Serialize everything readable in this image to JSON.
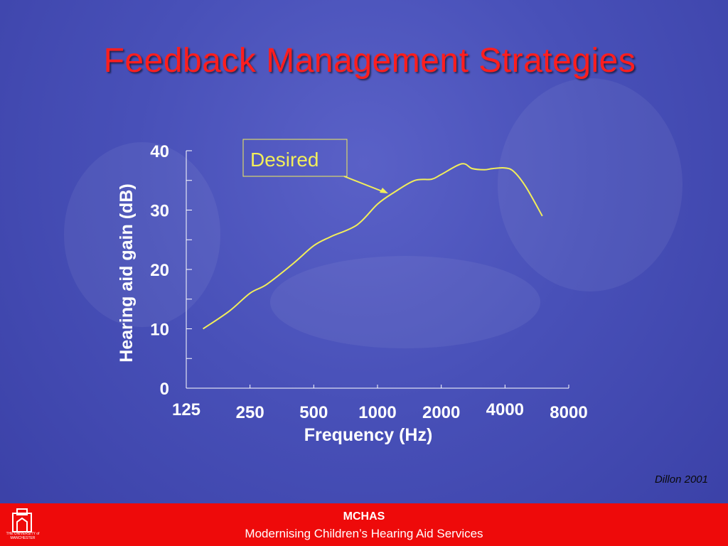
{
  "slide": {
    "title": "Feedback Management Strategies",
    "source": "Dillon 2001",
    "footer_title": "MCHAS",
    "footer_subtitle": "Modernising Children’s Hearing Aid Services",
    "logo_text": "THE UNIVERSITY of MANCHESTER"
  },
  "colors": {
    "title": "#ff1e1e",
    "curve": "#f2ee5a",
    "callout_border": "#f2ee5a",
    "callout_text": "#f2ee5a",
    "footer_bg": "#ee0a0a"
  },
  "chart_data": {
    "type": "line",
    "xlabel": "Frequency (Hz)",
    "ylabel": "Hearing aid gain (dB)",
    "x_ticks": [
      "125",
      "250",
      "500",
      "1000",
      "2000",
      "4000",
      "8000"
    ],
    "y_ticks": [
      "0",
      "10",
      "20",
      "30",
      "40"
    ],
    "ylim": [
      0,
      40
    ],
    "x_scale": "log",
    "grid": false,
    "annotation": "Desired",
    "series": [
      {
        "x": [
          150,
          200,
          250,
          300,
          400,
          500,
          600,
          800,
          1000,
          1200,
          1500,
          1800,
          2000,
          2500,
          2800,
          3200,
          3500,
          4000,
          4400,
          5000,
          6000
        ],
        "values": [
          10,
          13,
          16,
          17.5,
          21,
          24,
          25.5,
          27.5,
          31,
          33,
          35,
          35.2,
          36,
          37.8,
          37,
          36.8,
          37,
          37.1,
          36.5,
          34,
          29
        ]
      }
    ]
  }
}
